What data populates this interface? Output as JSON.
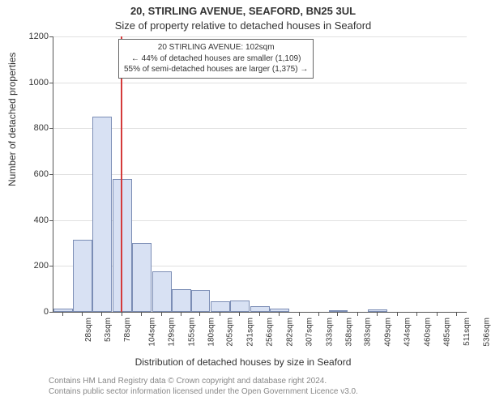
{
  "title_line1": "20, STIRLING AVENUE, SEAFORD, BN25 3UL",
  "title_line2": "Size of property relative to detached houses in Seaford",
  "y_axis_label": "Number of detached properties",
  "x_axis_label": "Distribution of detached houses by size in Seaford",
  "footnote_line1": "Contains HM Land Registry data © Crown copyright and database right 2024.",
  "footnote_line2": "Contains public sector information licensed under the Open Government Licence v3.0.",
  "chart": {
    "type": "histogram",
    "ylim": [
      0,
      1200
    ],
    "ytick_step": 200,
    "xlim_sqm": [
      15,
      549
    ],
    "bin_width_sqm": 25,
    "categories_sqm": [
      28,
      53,
      78,
      104,
      129,
      155,
      180,
      205,
      231,
      256,
      282,
      307,
      333,
      358,
      383,
      409,
      434,
      460,
      485,
      511,
      536
    ],
    "x_tick_labels": [
      "28sqm",
      "53sqm",
      "78sqm",
      "104sqm",
      "129sqm",
      "155sqm",
      "180sqm",
      "205sqm",
      "231sqm",
      "256sqm",
      "282sqm",
      "307sqm",
      "333sqm",
      "358sqm",
      "383sqm",
      "409sqm",
      "434sqm",
      "460sqm",
      "485sqm",
      "511sqm",
      "536sqm"
    ],
    "values": [
      15,
      315,
      850,
      580,
      300,
      175,
      100,
      95,
      45,
      50,
      25,
      15,
      0,
      0,
      8,
      0,
      10,
      0,
      0,
      0,
      0
    ],
    "bar_fill": "#d8e1f3",
    "bar_border": "#7b8db5",
    "grid_color": "#e0e0e0",
    "axis_color": "#555555",
    "background_color": "#ffffff",
    "marker_sqm": 102,
    "marker_color": "#d43a3a",
    "annotation_lines": [
      "20 STIRLING AVENUE: 102sqm",
      "← 44% of detached houses are smaller (1,109)",
      "55% of semi-detached houses are larger (1,375) →"
    ],
    "label_fontsize": 12,
    "title_fontsize": 13,
    "tick_fontsize": 11
  }
}
